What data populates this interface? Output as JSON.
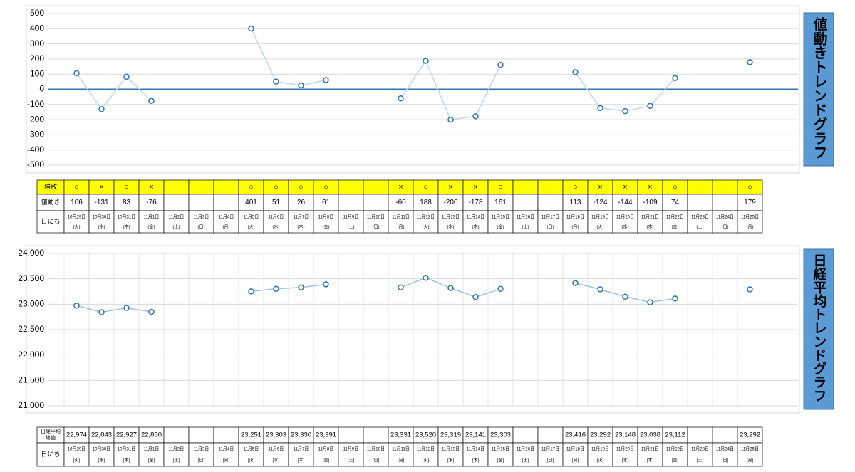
{
  "chart_data": [
    {
      "type": "line",
      "title": "値動きトレンドグラフ",
      "categories": [
        "10月29日",
        "10月30日",
        "10月31日",
        "11月1日",
        "11月2日",
        "11月3日",
        "11月4日",
        "11月5日",
        "11月6日",
        "11月7日",
        "11月8日",
        "11月9日",
        "11月10日",
        "11月11日",
        "11月12日",
        "11月13日",
        "11月14日",
        "11月15日",
        "11月16日",
        "11月17日",
        "11月18日",
        "11月19日",
        "11月20日",
        "11月21日",
        "11月22日",
        "11月23日",
        "11月24日",
        "11月25日"
      ],
      "values": [
        106,
        -131,
        83,
        -76,
        null,
        null,
        null,
        401,
        51,
        26,
        61,
        null,
        null,
        -60,
        188,
        -200,
        -178,
        161,
        null,
        null,
        113,
        -124,
        -144,
        -109,
        74,
        null,
        null,
        179
      ],
      "ylim": [
        -500,
        500
      ],
      "yticks": [
        -500,
        -400,
        -300,
        -200,
        -100,
        0,
        100,
        200,
        300,
        400,
        500
      ],
      "grid": true,
      "vgrid": false,
      "line_color": "#bdd7ee",
      "marker_color": "#2e75b6"
    },
    {
      "type": "line",
      "title": "日経平均トレンドグラフ",
      "categories": [
        "10月29日",
        "10月30日",
        "10月31日",
        "11月1日",
        "11月2日",
        "11月3日",
        "11月4日",
        "11月5日",
        "11月6日",
        "11月7日",
        "11月8日",
        "11月9日",
        "11月10日",
        "11月11日",
        "11月12日",
        "11月13日",
        "11月14日",
        "11月15日",
        "11月16日",
        "11月17日",
        "11月18日",
        "11月19日",
        "11月20日",
        "11月21日",
        "11月22日",
        "11月23日",
        "11月24日",
        "11月25日"
      ],
      "values": [
        22974,
        22843,
        22927,
        22850,
        null,
        null,
        null,
        23251,
        23303,
        23330,
        23391,
        null,
        null,
        23331,
        23520,
        23319,
        23141,
        23303,
        null,
        null,
        23416,
        23292,
        23148,
        23038,
        23112,
        null,
        null,
        23292
      ],
      "value_labels": [
        "22,974",
        "22,843",
        "22,927",
        "22,850",
        null,
        null,
        null,
        "23,251",
        "23,303",
        "23,330",
        "23,391",
        null,
        null,
        "23,331",
        "23,520",
        "23,319",
        "23,141",
        "23,303",
        null,
        null,
        "23,416",
        "23,292",
        "23,148",
        "23,038",
        "23,112",
        null,
        null,
        "23,292"
      ],
      "ylim": [
        21000,
        24000
      ],
      "yticks": [
        {
          "value": 21000,
          "label": "21,000"
        },
        {
          "value": 21500,
          "label": "21,500"
        },
        {
          "value": 22000,
          "label": "22,000"
        },
        {
          "value": 22500,
          "label": "22,500"
        },
        {
          "value": 23000,
          "label": "23,000"
        },
        {
          "value": 23500,
          "label": "23,500"
        },
        {
          "value": 24000,
          "label": "24,000"
        }
      ],
      "grid": true,
      "vgrid": true,
      "line_color": "#9dc3e6",
      "marker_color": "#2e75b6"
    }
  ],
  "tables": [
    {
      "row_labels": [
        "勝敗",
        "値動き",
        "日にち"
      ],
      "results": [
        "○",
        "×",
        "○",
        "×",
        null,
        null,
        null,
        "○",
        "○",
        "○",
        "○",
        null,
        null,
        "×",
        "○",
        "×",
        "×",
        "○",
        null,
        null,
        "○",
        "×",
        "×",
        "×",
        "○",
        null,
        null,
        "○"
      ],
      "weekdays": [
        "(火)",
        "(水)",
        "(木)",
        "(金)",
        "(土)",
        "(日)",
        "(月)",
        "(火)",
        "(水)",
        "(木)",
        "(金)",
        "(土)",
        "(日)",
        "(月)",
        "(火)",
        "(水)",
        "(木)",
        "(金)",
        "(土)",
        "(日)",
        "(月)",
        "(火)",
        "(水)",
        "(木)",
        "(金)",
        "(土)",
        "(日)",
        "(月)"
      ]
    },
    {
      "row_labels": [
        [
          "日経平均",
          "終値"
        ],
        "日にち"
      ],
      "weekdays": [
        "(火)",
        "(水)",
        "(木)",
        "(金)",
        "(土)",
        "(日)",
        "(月)",
        "(火)",
        "(水)",
        "(木)",
        "(金)",
        "(土)",
        "(日)",
        "(月)",
        "(火)",
        "(水)",
        "(木)",
        "(金)",
        "(土)",
        "(日)",
        "(月)",
        "(火)",
        "(水)",
        "(木)",
        "(金)",
        "(土)",
        "(日)",
        "(月)"
      ]
    }
  ]
}
